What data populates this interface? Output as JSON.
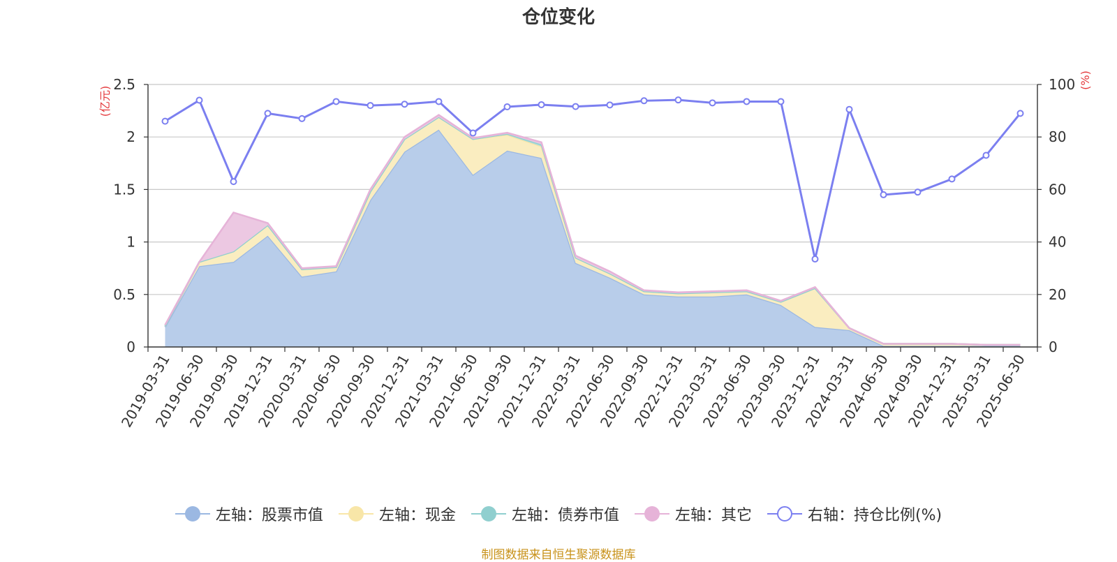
{
  "chart_data": {
    "type": "area",
    "title": "仓位变化",
    "left_axis_unit": "(亿元)",
    "right_axis_unit": "(%)",
    "ylim_left": [
      0,
      2.5
    ],
    "ylim_right": [
      0,
      100
    ],
    "left_ticks": [
      "0",
      "0.5",
      "1",
      "1.5",
      "2",
      "2.5"
    ],
    "right_ticks": [
      "0",
      "20",
      "40",
      "60",
      "80",
      "100"
    ],
    "grid": true,
    "legend_position": "bottom",
    "x": [
      "2019-03-31",
      "2019-06-30",
      "2019-09-30",
      "2019-12-31",
      "2020-03-31",
      "2020-06-30",
      "2020-09-30",
      "2020-12-31",
      "2021-03-31",
      "2021-06-30",
      "2021-09-30",
      "2021-12-31",
      "2022-03-31",
      "2022-06-30",
      "2022-09-30",
      "2022-12-31",
      "2023-03-31",
      "2023-06-30",
      "2023-09-30",
      "2023-12-31",
      "2024-03-31",
      "2024-06-30",
      "2024-09-30",
      "2024-12-31",
      "2025-03-31",
      "2025-06-30"
    ],
    "series": [
      {
        "name": "左轴：股票市值",
        "axis": "left",
        "stack": true,
        "color": "#9bb8e2",
        "fill": "#b8cdea",
        "values": [
          0.19,
          0.77,
          0.81,
          1.06,
          0.67,
          0.72,
          1.4,
          1.86,
          2.07,
          1.64,
          1.87,
          1.8,
          0.8,
          0.66,
          0.5,
          0.48,
          0.48,
          0.5,
          0.4,
          0.19,
          0.16,
          0.01,
          0.01,
          0.01,
          0.01,
          0.01
        ]
      },
      {
        "name": "左轴：现金",
        "axis": "left",
        "stack": true,
        "color": "#f8e6a8",
        "fill": "#faedc0",
        "values": [
          0.01,
          0.04,
          0.1,
          0.1,
          0.07,
          0.04,
          0.08,
          0.12,
          0.12,
          0.34,
          0.15,
          0.11,
          0.05,
          0.04,
          0.03,
          0.03,
          0.04,
          0.03,
          0.03,
          0.37,
          0.02,
          0.02,
          0.02,
          0.02,
          0.01,
          0.01
        ]
      },
      {
        "name": "左轴：债券市值",
        "axis": "left",
        "stack": true,
        "color": "#90cfcf",
        "fill": "#a8dada",
        "values": [
          0,
          0,
          0,
          0,
          0,
          0,
          0,
          0,
          0,
          0,
          0.01,
          0.02,
          0,
          0,
          0,
          0,
          0,
          0,
          0,
          0,
          0,
          0,
          0,
          0,
          0,
          0
        ]
      },
      {
        "name": "左轴：其它",
        "axis": "left",
        "stack": true,
        "color": "#e6b3d8",
        "fill": "#ecc8e2",
        "values": [
          0.01,
          0.0,
          0.37,
          0.02,
          0.01,
          0.01,
          0.02,
          0.02,
          0.02,
          0.01,
          0.01,
          0.02,
          0.02,
          0.02,
          0.01,
          0.01,
          0.01,
          0.01,
          0.01,
          0.01,
          0.0,
          0.0,
          0.0,
          0.0,
          0.0,
          0.0
        ]
      },
      {
        "name": "右轴：持仓比例(%)",
        "axis": "right",
        "stack": false,
        "color": "#7b7ff0",
        "values": [
          86,
          94,
          63,
          89,
          87,
          93.5,
          92,
          92.5,
          93.5,
          81.5,
          91.5,
          92.3,
          91.6,
          92.2,
          93.8,
          94.1,
          93,
          93.5,
          93.5,
          33.5,
          90.5,
          58,
          59,
          64,
          73,
          89
        ]
      }
    ]
  },
  "source_text": "制图数据来自恒生聚源数据库"
}
